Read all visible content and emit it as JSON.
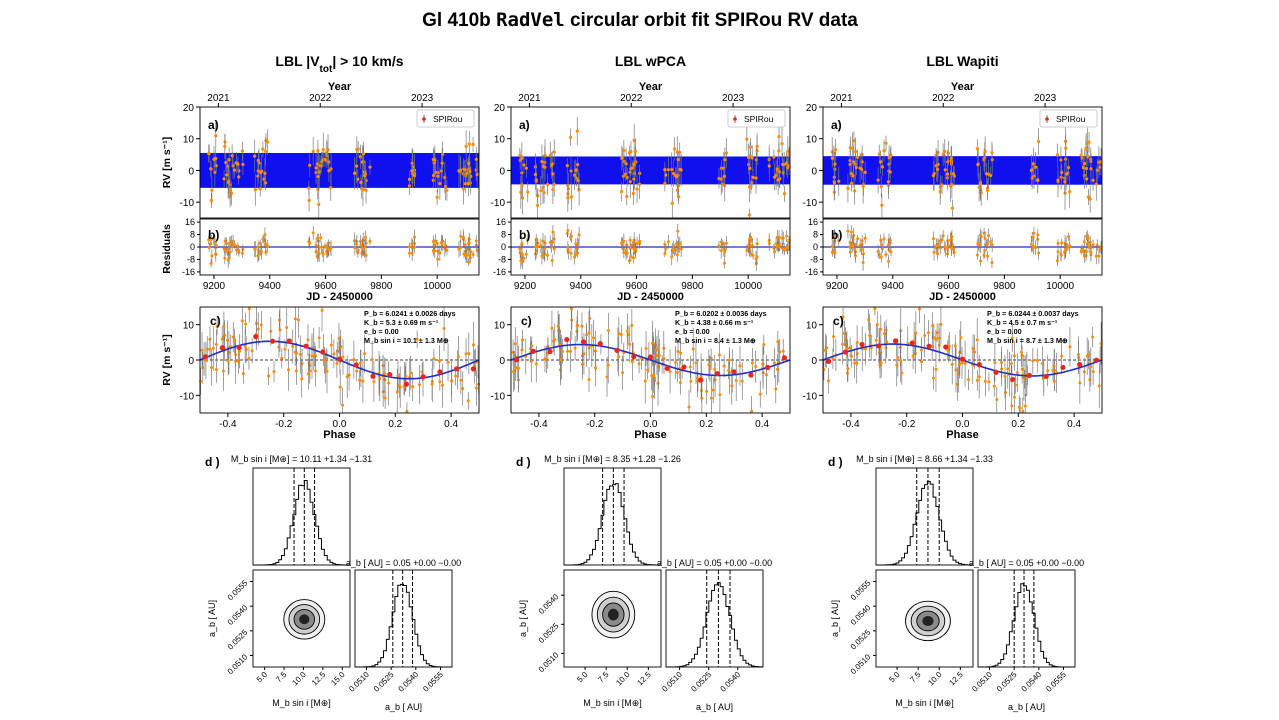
{
  "figure": {
    "title_prefix": "Gl 410b ",
    "title_code": "RadVel",
    "title_suffix": " circular orbit fit SPIRou RV data"
  },
  "colors": {
    "band": "#1010ee",
    "points": "#ff8c00",
    "red_points": "#e8261f",
    "fit_line": "#1f2fbf",
    "error_bars": "#777777"
  },
  "chart_data": [
    {
      "type": "scatter",
      "column_title_html": "LBL |V<tspan baseline-shift=\"sub\" font-size=\"10\">tot</tspan>| &gt; 10 km/s",
      "column_title": "LBL |Vtot| > 10 km/s",
      "seed": 11,
      "panel_a": {
        "label": "a)",
        "xlim": [
          9150,
          10150
        ],
        "ylim": [
          -15,
          20
        ],
        "yticks": [
          "20",
          "10",
          "0",
          "-10"
        ],
        "ytick_values": [
          20,
          10,
          0,
          -10
        ],
        "ylabel": "RV [m s⁻¹]",
        "band": [
          -5.5,
          5.5
        ],
        "top_axis_label": "Year",
        "top_ticks": [
          "2021",
          "2022",
          "2023"
        ],
        "top_tick_jd": [
          9216,
          9581,
          9946
        ],
        "legend": "SPIRou"
      },
      "panel_b": {
        "label": "b)",
        "ylabel": "Residuals",
        "yticks": [
          "16",
          "8",
          "0",
          "-8",
          "-16"
        ],
        "ytick_values": [
          16,
          8,
          0,
          -8,
          -16
        ],
        "ylim": [
          -18,
          18
        ],
        "xticks": [
          "9200",
          "9400",
          "9600",
          "9800",
          "10000"
        ],
        "xtick_values": [
          9200,
          9400,
          9600,
          9800,
          10000
        ],
        "xlabel": "JD - 2450000"
      },
      "panel_c": {
        "label": "c)",
        "xlim": [
          -0.5,
          0.5
        ],
        "ylim": [
          -15,
          15
        ],
        "xticks": [
          "-0.4",
          "-0.2",
          "0.0",
          "0.2",
          "0.4"
        ],
        "xtick_values": [
          -0.4,
          -0.2,
          0.0,
          0.2,
          0.4
        ],
        "yticks": [
          "10",
          "0",
          "-10"
        ],
        "ytick_values": [
          10,
          0,
          -10
        ],
        "xlabel": "Phase",
        "ylabel": "RV [m s⁻¹]",
        "K": 5.3,
        "annot": [
          "P_b = 6.0241 ± 0.0026 days",
          "K_b = 5.3 ± 0.69 m s⁻¹",
          "e_b = 0.00",
          "M_b sin i = 10.1 ± 1.3 M⊕"
        ]
      },
      "panel_d": {
        "label": "d )",
        "mass_title": "M_b sin i [M⊕] = 10.11 +1.34 −1.31",
        "a_title": "a_b [ AU] = 0.05 +0.00 −0.00",
        "mass_mean": 10.11,
        "mass_sd": 1.32,
        "mass_xlim": [
          3.5,
          16
        ],
        "mass_ticks": [
          "5.0",
          "7.5",
          "10.0",
          "12.5",
          "15.0"
        ],
        "mass_tick_values": [
          5.0,
          7.5,
          10.0,
          12.5,
          15.0
        ],
        "a_ticks": [
          "0.0510",
          "0.0525",
          "0.0540",
          "0.0555"
        ],
        "a_tick_values": [
          0.051,
          0.0525,
          0.054,
          0.0555
        ],
        "a_xlim": [
          0.0503,
          0.0562
        ],
        "a_mean": 0.0532,
        "a_sd": 0.0006,
        "xlabel_mass": "M_b sin i [M⊕]",
        "xlabel_a": "a_b [ AU]",
        "ylabel_a": "a_b [ AU]"
      }
    },
    {
      "type": "scatter",
      "column_title_html": "LBL wPCA",
      "column_title": "LBL wPCA",
      "seed": 23,
      "panel_a": {
        "label": "a)",
        "xlim": [
          9150,
          10150
        ],
        "ylim": [
          -15,
          20
        ],
        "yticks": [
          "20",
          "10",
          "0",
          "-10"
        ],
        "ytick_values": [
          20,
          10,
          0,
          -10
        ],
        "ylabel": "",
        "band": [
          -4.4,
          4.4
        ],
        "top_axis_label": "Year",
        "top_ticks": [
          "2021",
          "2022",
          "2023"
        ],
        "top_tick_jd": [
          9216,
          9581,
          9946
        ],
        "legend": "SPIRou"
      },
      "panel_b": {
        "label": "b)",
        "ylabel": "",
        "yticks": [
          "16",
          "8",
          "0",
          "-8",
          "-16"
        ],
        "ytick_values": [
          16,
          8,
          0,
          -8,
          -16
        ],
        "ylim": [
          -18,
          18
        ],
        "xticks": [
          "9200",
          "9400",
          "9600",
          "9800",
          "10000"
        ],
        "xtick_values": [
          9200,
          9400,
          9600,
          9800,
          10000
        ],
        "xlabel": "JD - 2450000"
      },
      "panel_c": {
        "label": "c)",
        "xlim": [
          -0.5,
          0.5
        ],
        "ylim": [
          -15,
          15
        ],
        "xticks": [
          "-0.4",
          "-0.2",
          "0.0",
          "0.2",
          "0.4"
        ],
        "xtick_values": [
          -0.4,
          -0.2,
          0.0,
          0.2,
          0.4
        ],
        "yticks": [
          "10",
          "0",
          "-10"
        ],
        "ytick_values": [
          10,
          0,
          -10
        ],
        "xlabel": "Phase",
        "ylabel": "",
        "K": 4.38,
        "annot": [
          "P_b = 6.0202 ± 0.0036 days",
          "K_b = 4.38 ± 0.66 m s⁻¹",
          "e_b = 0.00",
          "M_b sin i = 8.4 ± 1.3 M⊕"
        ]
      },
      "panel_d": {
        "label": "d )",
        "mass_title": "M_b sin i [M⊕] = 8.35 +1.28 −1.26",
        "a_title": "a_b [ AU] = 0.05 +0.00 −0.00",
        "mass_mean": 8.35,
        "mass_sd": 1.27,
        "mass_xlim": [
          2.5,
          14
        ],
        "mass_ticks": [
          "5.0",
          "7.5",
          "10.0",
          "12.5"
        ],
        "mass_tick_values": [
          5.0,
          7.5,
          10.0,
          12.5
        ],
        "a_ticks": [
          "0.0510",
          "0.0525",
          "0.0540"
        ],
        "a_tick_values": [
          0.051,
          0.0525,
          0.054
        ],
        "a_xlim": [
          0.0503,
          0.0553
        ],
        "a_mean": 0.053,
        "a_sd": 0.0006,
        "xlabel_mass": "M_b sin i [M⊕]",
        "xlabel_a": "a_b [ AU]",
        "ylabel_a": "a_b [ AU]"
      }
    },
    {
      "type": "scatter",
      "column_title_html": "LBL Wapiti",
      "column_title": "LBL Wapiti",
      "seed": 37,
      "panel_a": {
        "label": "a)",
        "xlim": [
          9150,
          10150
        ],
        "ylim": [
          -15,
          20
        ],
        "yticks": [
          "20",
          "10",
          "0",
          "-10"
        ],
        "ytick_values": [
          20,
          10,
          0,
          -10
        ],
        "ylabel": "",
        "band": [
          -4.5,
          4.5
        ],
        "top_axis_label": "Year",
        "top_ticks": [
          "2021",
          "2022",
          "2023"
        ],
        "top_tick_jd": [
          9216,
          9581,
          9946
        ],
        "legend": "SPIRou"
      },
      "panel_b": {
        "label": "b)",
        "ylabel": "",
        "yticks": [
          "16",
          "8",
          "0",
          "-8",
          "-16"
        ],
        "ytick_values": [
          16,
          8,
          0,
          -8,
          -16
        ],
        "ylim": [
          -18,
          18
        ],
        "xticks": [
          "9200",
          "9400",
          "9600",
          "9800",
          "10000"
        ],
        "xtick_values": [
          9200,
          9400,
          9600,
          9800,
          10000
        ],
        "xlabel": "JD - 2450000"
      },
      "panel_c": {
        "label": "c)",
        "xlim": [
          -0.5,
          0.5
        ],
        "ylim": [
          -15,
          15
        ],
        "xticks": [
          "-0.4",
          "-0.2",
          "0.0",
          "0.2",
          "0.4"
        ],
        "xtick_values": [
          -0.4,
          -0.2,
          0.0,
          0.2,
          0.4
        ],
        "yticks": [
          "10",
          "0",
          "-10"
        ],
        "ytick_values": [
          10,
          0,
          -10
        ],
        "xlabel": "Phase",
        "ylabel": "",
        "K": 4.5,
        "annot": [
          "P_b = 6.0244 ± 0.0037 days",
          "K_b = 4.5 ± 0.7 m s⁻¹",
          "e_b = 0.00",
          "M_b sin i = 8.7 ± 1.3 M⊕"
        ]
      },
      "panel_d": {
        "label": "d )",
        "mass_title": "M_b sin i [M⊕] = 8.66 +1.34 −1.33",
        "a_title": "a_b [ AU] = 0.05 +0.00 −0.00",
        "mass_mean": 8.66,
        "mass_sd": 1.33,
        "mass_xlim": [
          2.5,
          14
        ],
        "mass_ticks": [
          "5.0",
          "7.5",
          "10.0",
          "12.5"
        ],
        "mass_tick_values": [
          5.0,
          7.5,
          10.0,
          12.5
        ],
        "a_ticks": [
          "0.0510",
          "0.0525",
          "0.0540",
          "0.0555"
        ],
        "a_tick_values": [
          0.051,
          0.0525,
          0.054,
          0.0555
        ],
        "a_xlim": [
          0.0503,
          0.0562
        ],
        "a_mean": 0.0531,
        "a_sd": 0.0006,
        "xlabel_mass": "M_b sin i [M⊕]",
        "xlabel_a": "a_b [ AU]",
        "ylabel_a": "a_b [ AU]"
      }
    }
  ]
}
